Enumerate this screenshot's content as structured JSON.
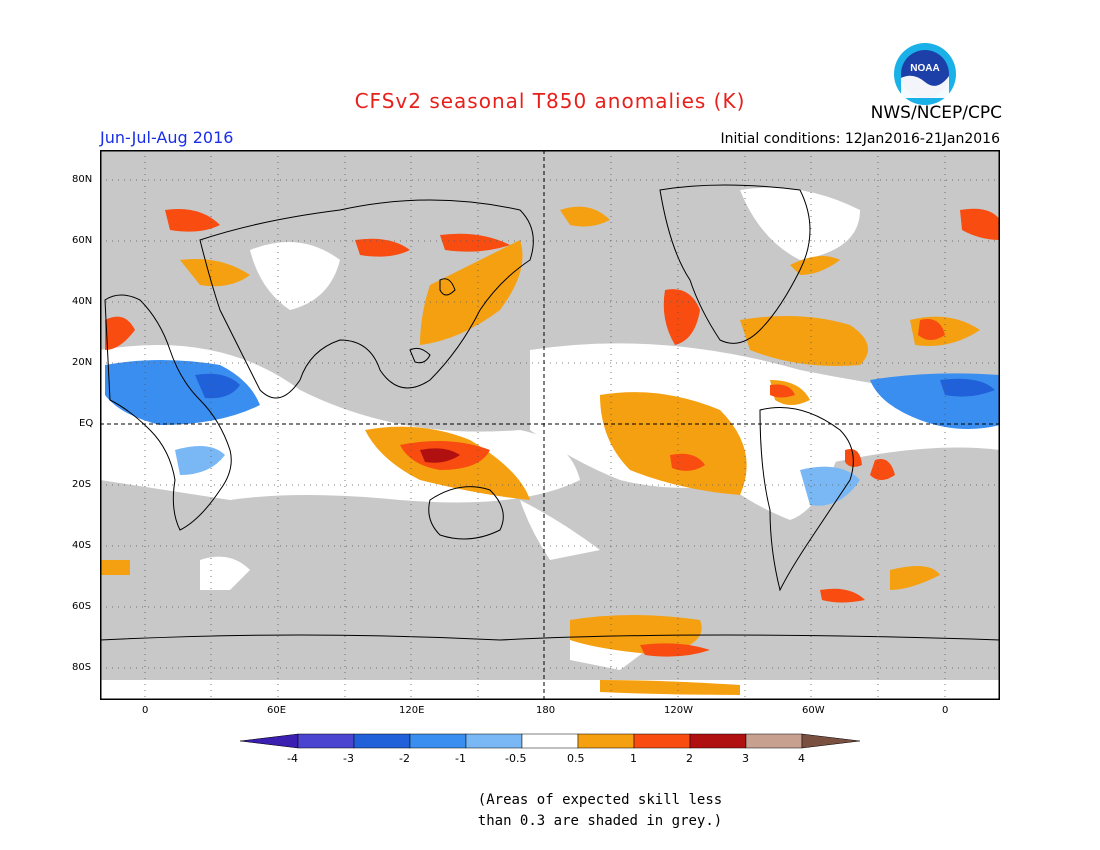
{
  "title": "CFSv2 seasonal T850 anomalies (K)",
  "agency": "NWS/NCEP/CPC",
  "logo": {
    "text": "NOAA",
    "colors": {
      "ring": "#1ab0e8",
      "sea": "#1c3fa8",
      "bird": "#ffffff"
    }
  },
  "season": "Jun-Jul-Aug 2016",
  "initial_conditions": "Initial conditions: 12Jan2016-21Jan2016",
  "lat_labels": [
    "80N",
    "60N",
    "40N",
    "20N",
    "EQ",
    "20S",
    "40S",
    "60S",
    "80S"
  ],
  "lon_labels": [
    "0",
    "60E",
    "120E",
    "180",
    "120W",
    "60W",
    "0"
  ],
  "colorbar": {
    "labels": [
      "-4",
      "-3",
      "-2",
      "-1",
      "-0.5",
      "0.5",
      "1",
      "2",
      "3",
      "4"
    ],
    "colors": [
      "#3b1fb0",
      "#4a44d0",
      "#2060d8",
      "#3a8ef0",
      "#7ab8f5",
      "#ffffff",
      "#f5a010",
      "#f84c10",
      "#b01010",
      "#c8a090",
      "#7a5040"
    ]
  },
  "map_colors": {
    "skill_low": "#c8c8c8",
    "neutral": "#ffffff"
  },
  "note_line1": "(Areas of expected skill less",
  "note_line2": "than 0.3 are shaded in grey.)"
}
